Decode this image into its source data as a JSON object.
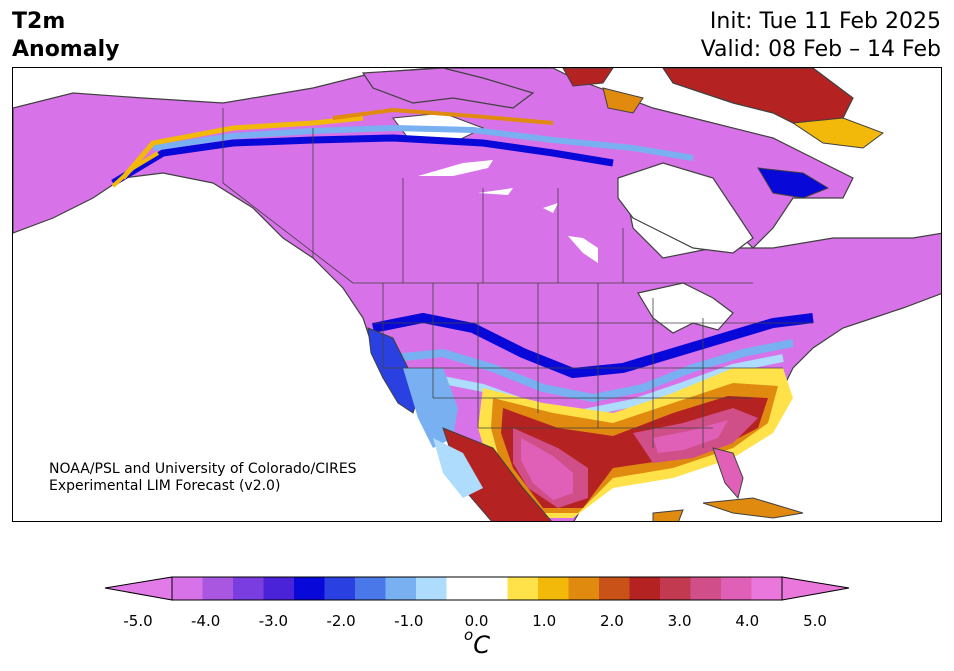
{
  "title": {
    "line1": "T2m",
    "line2": "Anomaly"
  },
  "dates": {
    "init": "Init: Tue 11 Feb 2025",
    "valid": "Valid: 08 Feb – 14 Feb"
  },
  "credit": {
    "line1": "NOAA/PSL and University of Colorado/CIRES",
    "line2": "Experimental LIM Forecast (v2.0)"
  },
  "colorbar": {
    "unit_symbol": "o",
    "unit_letter": "C",
    "ticks": [
      "-5.0",
      "-4.0",
      "-3.0",
      "-2.0",
      "-1.0",
      "0.0",
      "1.0",
      "2.0",
      "3.0",
      "4.0",
      "5.0"
    ],
    "colors": [
      "#d872e8",
      "#a957e0",
      "#7a3ee0",
      "#4a22d8",
      "#0808d8",
      "#2a40e0",
      "#4a78e8",
      "#78b0f2",
      "#aedcfc",
      "#ffffff",
      "#ffffff",
      "#ffe24a",
      "#f2b80a",
      "#e08a10",
      "#c85218",
      "#b52222",
      "#c23a50",
      "#d04f88",
      "#e060b8",
      "#ea78dc"
    ],
    "low_extend_color": "#e27ae8",
    "high_extend_color": "#ea78dc"
  },
  "map_colors": {
    "strong_cold": "#d872e8",
    "cold_mid": "#a957e0",
    "cold_dark": "#0808d8",
    "cold_blue": "#2a40e0",
    "cold_light": "#78b0f2",
    "cold_pale": "#aedcfc",
    "warm_yellow": "#ffe24a",
    "warm_orange": "#e08a10",
    "warm_red": "#b52222",
    "warm_pink": "#d04f88",
    "warm_magenta": "#e060b8",
    "land_outline": "#404040"
  }
}
